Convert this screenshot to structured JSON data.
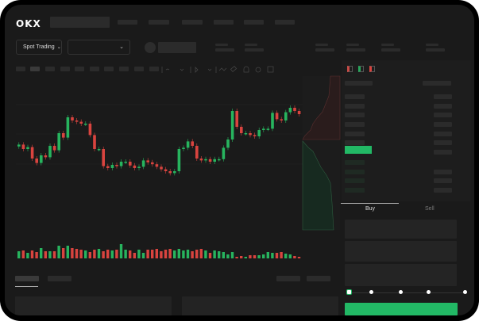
{
  "header": {
    "logo": "OKX",
    "market_select": "Spot Trading"
  },
  "order_form": {
    "tabs": [
      "Buy",
      "Sell"
    ],
    "active_tab": "Buy",
    "slider_percent": 0
  },
  "colors": {
    "up": "#27b45e",
    "down": "#d9443f",
    "accent": "#22b865",
    "background": "#1a1a1a"
  },
  "icons": [
    "chevron-down-icon",
    "order-book-both-icon",
    "order-book-bids-icon",
    "order-book-asks-icon",
    "indicator-icon",
    "draw-icon",
    "camera-icon",
    "settings-icon",
    "fullscreen-icon"
  ],
  "chart_data": {
    "type": "candlestick",
    "closes": [
      57,
      50,
      53,
      35,
      28,
      40,
      37,
      55,
      48,
      75,
      68,
      100,
      95,
      93,
      90,
      90,
      72,
      50,
      50,
      23,
      20,
      25,
      23,
      30,
      30,
      24,
      20,
      22,
      32,
      29,
      26,
      22,
      18,
      15,
      12,
      15,
      50,
      52,
      62,
      55,
      35,
      32,
      34,
      30,
      34,
      34,
      52,
      65,
      110,
      85,
      75,
      75,
      72,
      70,
      80,
      82,
      82,
      107,
      97,
      95,
      108,
      115,
      110,
      105
    ],
    "volumes": [
      9,
      10,
      7,
      10,
      8,
      13,
      9,
      9,
      9,
      16,
      13,
      16,
      13,
      12,
      11,
      10,
      8,
      11,
      12,
      9,
      11,
      10,
      11,
      18,
      11,
      10,
      7,
      11,
      7,
      11,
      11,
      12,
      9,
      11,
      12,
      10,
      12,
      10,
      11,
      9,
      11,
      12,
      10,
      7,
      10,
      9,
      8,
      5,
      8,
      2,
      3,
      2,
      4,
      4,
      4,
      5,
      8,
      7,
      7,
      8,
      6,
      5,
      3,
      2
    ]
  }
}
